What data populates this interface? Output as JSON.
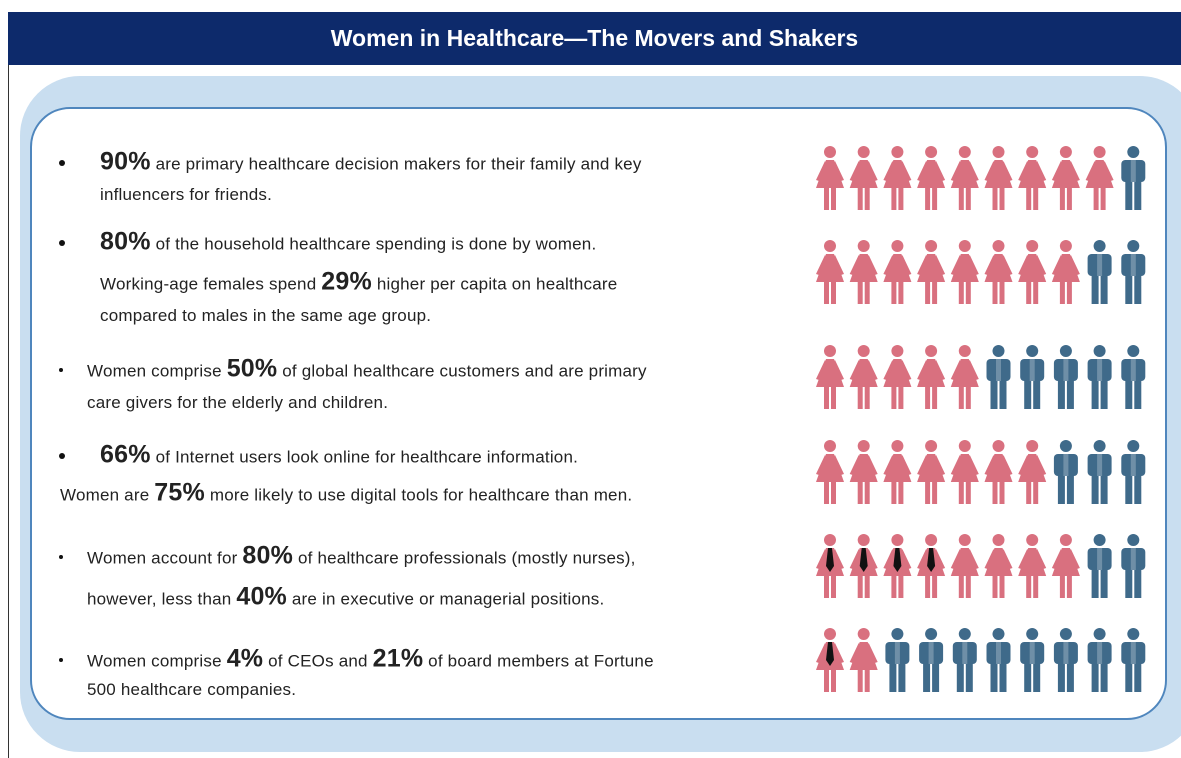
{
  "header": {
    "title": "Women in Healthcare—The Movers and Shakers"
  },
  "items": [
    {
      "lines": [
        [
          {
            "stat": "90%"
          },
          " are primary healthcare decision makers for their family and key"
        ],
        [
          "influencers for friends."
        ]
      ]
    },
    {
      "lines": [
        [
          {
            "stat": "80%"
          },
          " of the household healthcare spending is done by women."
        ],
        [
          "Working-age females spend ",
          {
            "stat": "29%"
          },
          " higher per capita on healthcare"
        ],
        [
          "compared to males in the same age group."
        ]
      ]
    },
    {
      "lines": [
        [
          "Women comprise ",
          {
            "stat": "50%"
          },
          " of global healthcare customers and are primary"
        ],
        [
          "care givers for the elderly and children."
        ]
      ]
    },
    {
      "lines": [
        [
          {
            "stat": "66%"
          },
          " of Internet users look online for healthcare information."
        ],
        [
          "Women are ",
          {
            "stat": "75%"
          },
          " more likely to use digital tools for healthcare than men."
        ]
      ]
    },
    {
      "lines": [
        [
          "Women account for ",
          {
            "stat": "80%"
          },
          " of healthcare professionals (mostly nurses),"
        ],
        [
          "however, less than ",
          {
            "stat": "40%"
          },
          " are in executive or managerial positions."
        ]
      ]
    },
    {
      "lines": [
        [
          "Women comprise ",
          {
            "stat": "4%"
          },
          " of CEOs and ",
          {
            "stat": "21%"
          },
          " of board members at Fortune"
        ],
        [
          "500 healthcare companies."
        ]
      ]
    }
  ]
}
